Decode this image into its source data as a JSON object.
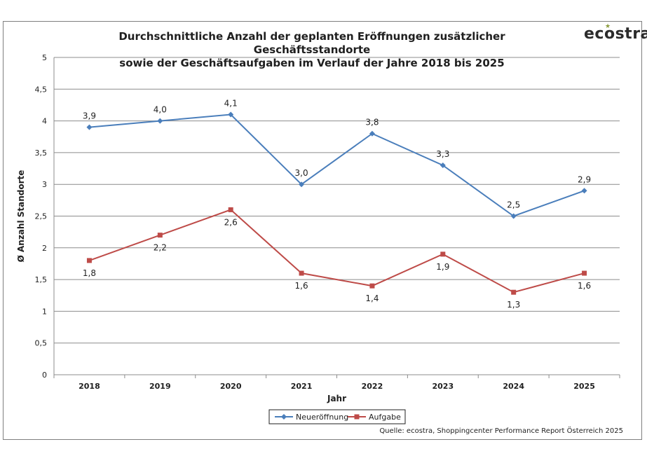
{
  "chart_data": {
    "type": "line",
    "title_line1": "Durchschnittliche Anzahl der geplanten Eröffnungen zusätzlicher Geschäftsstandorte",
    "title_line2": "sowie der Geschäftsaufgaben im Verlauf der Jahre 2018 bis 2025",
    "xlabel": "Jahr",
    "ylabel": "Ø Anzahl Standorte",
    "categories": [
      "2018",
      "2019",
      "2020",
      "2021",
      "2022",
      "2023",
      "2024",
      "2025"
    ],
    "ylim": [
      0,
      5
    ],
    "ytick_labels": [
      "0",
      "0,5",
      "1",
      "1,5",
      "2",
      "2,5",
      "3",
      "3,5",
      "4",
      "4,5",
      "5"
    ],
    "grid": true,
    "legend_position": "bottom",
    "series": [
      {
        "name": "Neueröffnung",
        "color": "#4a7ebb",
        "marker": "diamond",
        "values": [
          3.9,
          4.0,
          4.1,
          3.0,
          3.8,
          3.3,
          2.5,
          2.9
        ],
        "labels": [
          "3,9",
          "4,0",
          "4,1",
          "3,0",
          "3,8",
          "3,3",
          "2,5",
          "2,9"
        ]
      },
      {
        "name": "Aufgabe",
        "color": "#be4b48",
        "marker": "square",
        "values": [
          1.8,
          2.2,
          2.6,
          1.6,
          1.4,
          1.9,
          1.3,
          1.6
        ],
        "labels": [
          "1,8",
          "2,2",
          "2,6",
          "1,6",
          "1,4",
          "1,9",
          "1,3",
          "1,6"
        ]
      }
    ]
  },
  "logo_text": "ecostra",
  "source_text": "Quelle: ecostra, Shoppingcenter Performance Report Österreich 2025"
}
